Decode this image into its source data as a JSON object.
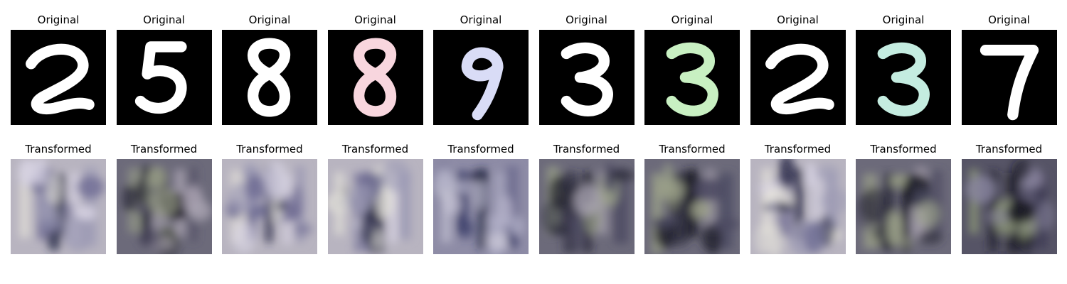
{
  "rows": [
    {
      "name": "original",
      "panels": [
        {
          "title": "Original",
          "digit": "2",
          "ink": "#ffffff"
        },
        {
          "title": "Original",
          "digit": "5",
          "ink": "#ffffff"
        },
        {
          "title": "Original",
          "digit": "8",
          "ink": "#ffffff"
        },
        {
          "title": "Original",
          "digit": "8",
          "ink": "#f8d6de"
        },
        {
          "title": "Original",
          "digit": "9",
          "ink": "#d9dcf6"
        },
        {
          "title": "Original",
          "digit": "3",
          "ink": "#ffffff"
        },
        {
          "title": "Original",
          "digit": "3",
          "ink": "#c8f0c2"
        },
        {
          "title": "Original",
          "digit": "2",
          "ink": "#ffffff"
        },
        {
          "title": "Original",
          "digit": "3",
          "ink": "#c4ece0"
        },
        {
          "title": "Original",
          "digit": "7",
          "ink": "#ffffff"
        }
      ]
    },
    {
      "name": "transformed",
      "panels": [
        {
          "title": "Transformed",
          "tone": "light"
        },
        {
          "title": "Transformed",
          "tone": "dark"
        },
        {
          "title": "Transformed",
          "tone": "light"
        },
        {
          "title": "Transformed",
          "tone": "light"
        },
        {
          "title": "Transformed",
          "tone": "mid"
        },
        {
          "title": "Transformed",
          "tone": "dark"
        },
        {
          "title": "Transformed",
          "tone": "dark"
        },
        {
          "title": "Transformed",
          "tone": "light"
        },
        {
          "title": "Transformed",
          "tone": "dark"
        },
        {
          "title": "Transformed",
          "tone": "darker"
        }
      ]
    }
  ]
}
